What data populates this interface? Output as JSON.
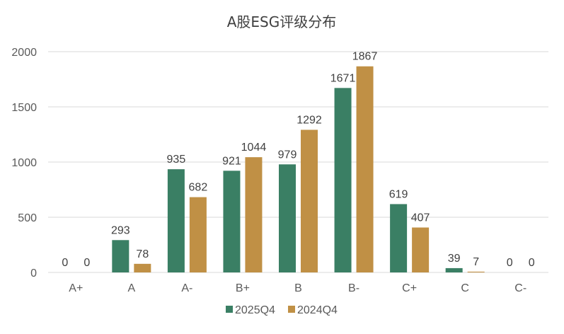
{
  "chart_data": {
    "type": "bar",
    "title": "A股ESG评级分布",
    "categories": [
      "A+",
      "A",
      "A-",
      "B+",
      "B",
      "B-",
      "C+",
      "C",
      "C-"
    ],
    "series": [
      {
        "name": "2025Q4",
        "color": "#3a7f64",
        "values": [
          0,
          293,
          935,
          921,
          979,
          1671,
          619,
          39,
          0
        ]
      },
      {
        "name": "2024Q4",
        "color": "#c09045",
        "values": [
          0,
          78,
          682,
          1044,
          1292,
          1867,
          407,
          7,
          0
        ]
      }
    ],
    "y_ticks": [
      "0",
      "500",
      "1000",
      "1500",
      "2000"
    ],
    "ylim": [
      0,
      2000
    ],
    "grid": true,
    "legend_position": "bottom"
  }
}
